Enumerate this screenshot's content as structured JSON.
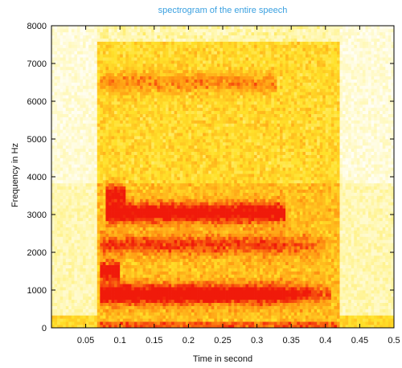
{
  "chart_data": {
    "type": "heatmap",
    "title": "spectrogram of the entire speech",
    "xlabel": "Time in second",
    "ylabel": "Frequency in Hz",
    "xlim": [
      0,
      0.5
    ],
    "ylim": [
      0,
      8000
    ],
    "x_ticks": [
      0.05,
      0.1,
      0.15,
      0.2,
      0.25,
      0.3,
      0.35,
      0.4,
      0.45,
      0.5
    ],
    "y_ticks": [
      0,
      1000,
      2000,
      3000,
      4000,
      5000,
      6000,
      7000,
      8000
    ],
    "speech_interval": [
      0.065,
      0.42
    ],
    "formant_bands_hz": [
      {
        "center": 900,
        "t_start": 0.07,
        "t_end": 0.41,
        "intensity": 1.0
      },
      {
        "center": 1500,
        "t_start": 0.07,
        "t_end": 0.1,
        "intensity": 0.85
      },
      {
        "center": 2200,
        "t_start": 0.07,
        "t_end": 0.4,
        "intensity": 0.55
      },
      {
        "center": 3050,
        "t_start": 0.08,
        "t_end": 0.34,
        "intensity": 0.9
      },
      {
        "center": 3550,
        "t_start": 0.08,
        "t_end": 0.11,
        "intensity": 0.75
      },
      {
        "center": 6500,
        "t_start": 0.07,
        "t_end": 0.33,
        "intensity": 0.45
      }
    ],
    "colormap": [
      "#2fb8ec",
      "#ffffff",
      "#fff6a6",
      "#ffe12a",
      "#ff9a12",
      "#f01a0a"
    ]
  }
}
